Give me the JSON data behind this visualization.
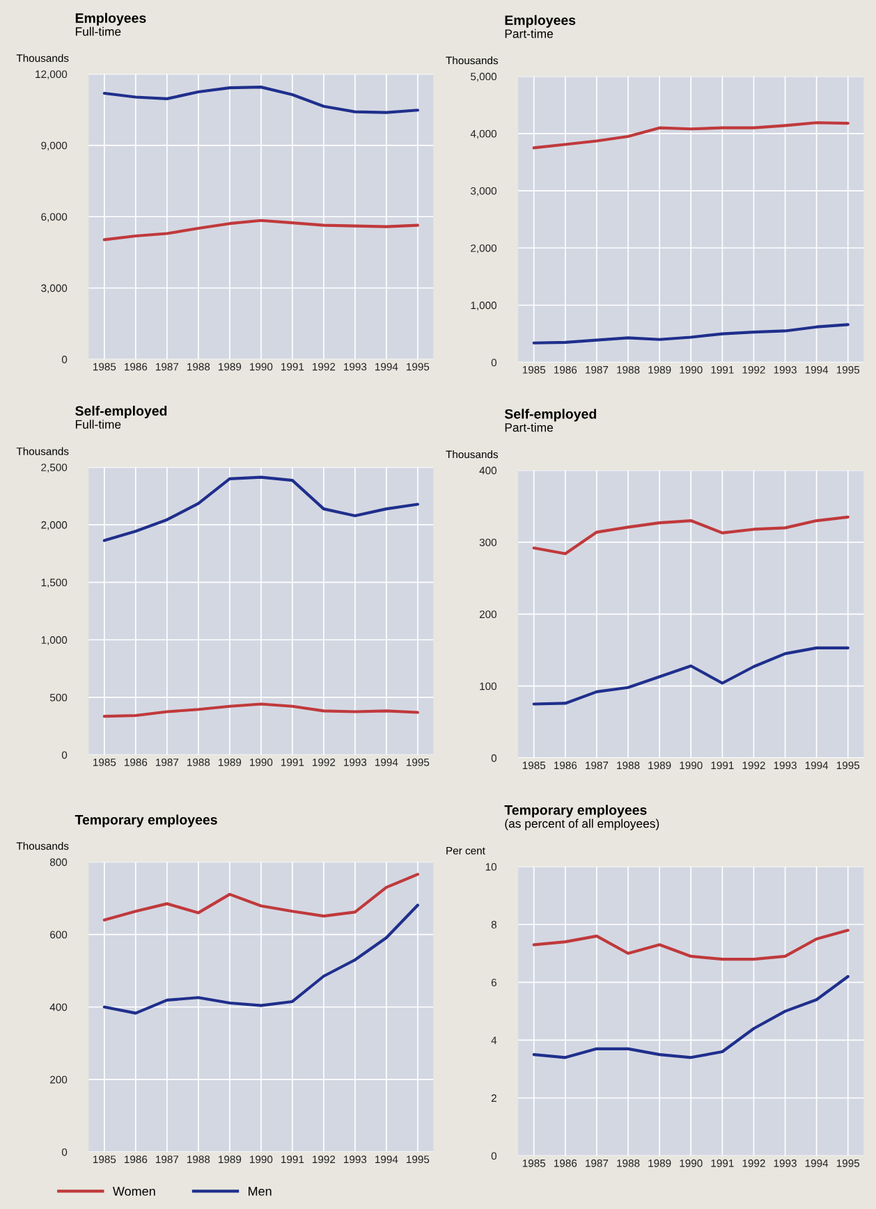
{
  "chart_data": [
    {
      "type": "line",
      "title": "Employees",
      "subtitle": "Full-time",
      "ylabel": "Thousands",
      "categories": [
        "1985",
        "1986",
        "1987",
        "1988",
        "1989",
        "1990",
        "1991",
        "1992",
        "1993",
        "1994",
        "1995"
      ],
      "ylim": [
        0,
        12000
      ],
      "yticks": [
        {
          "value": 0,
          "label": "0"
        },
        {
          "value": 3000,
          "label": "3,000"
        },
        {
          "value": 6000,
          "label": "6,000"
        },
        {
          "value": 9000,
          "label": "9,000"
        },
        {
          "value": 12000,
          "label": "12,000"
        }
      ],
      "grid": true,
      "series": [
        {
          "color": "#c0393b",
          "values": [
            5030,
            5190,
            5290,
            5510,
            5710,
            5840,
            5740,
            5640,
            5610,
            5580,
            5640
          ]
        },
        {
          "color": "#1f2f8c",
          "values": [
            11190,
            11030,
            10960,
            11250,
            11420,
            11450,
            11130,
            10640,
            10410,
            10380,
            10480
          ]
        }
      ]
    },
    {
      "type": "line",
      "title": "Employees",
      "subtitle": "Part-time",
      "ylabel": "Thousands",
      "categories": [
        "1985",
        "1986",
        "1987",
        "1988",
        "1989",
        "1990",
        "1991",
        "1992",
        "1993",
        "1994",
        "1995"
      ],
      "ylim": [
        0,
        5000
      ],
      "yticks": [
        {
          "value": 0,
          "label": "0"
        },
        {
          "value": 1000,
          "label": "1,000"
        },
        {
          "value": 2000,
          "label": "2,000"
        },
        {
          "value": 3000,
          "label": "3,000"
        },
        {
          "value": 4000,
          "label": "4,000"
        },
        {
          "value": 5000,
          "label": "5,000"
        }
      ],
      "grid": true,
      "series": [
        {
          "color": "#c0393b",
          "values": [
            3750,
            3810,
            3870,
            3950,
            4100,
            4080,
            4100,
            4100,
            4140,
            4190,
            4180
          ]
        },
        {
          "color": "#1f2f8c",
          "values": [
            340,
            350,
            390,
            430,
            400,
            440,
            500,
            530,
            550,
            620,
            660
          ]
        }
      ]
    },
    {
      "type": "line",
      "title": "Self-employed",
      "subtitle": "Full-time",
      "ylabel": "Thousands",
      "categories": [
        "1985",
        "1986",
        "1987",
        "1988",
        "1989",
        "1990",
        "1991",
        "1992",
        "1993",
        "1994",
        "1995"
      ],
      "ylim": [
        0,
        2500
      ],
      "yticks": [
        {
          "value": 0,
          "label": "0"
        },
        {
          "value": 500,
          "label": "500"
        },
        {
          "value": 1000,
          "label": "1,000"
        },
        {
          "value": 1500,
          "label": "1,500"
        },
        {
          "value": 2000,
          "label": "2,000"
        },
        {
          "value": 2500,
          "label": "2,500"
        }
      ],
      "grid": true,
      "series": [
        {
          "color": "#c0393b",
          "values": [
            335,
            342,
            375,
            395,
            422,
            442,
            422,
            382,
            375,
            382,
            369
          ]
        },
        {
          "color": "#1f2f8c",
          "values": [
            1863,
            1944,
            2044,
            2185,
            2400,
            2413,
            2386,
            2138,
            2078,
            2138,
            2178
          ]
        }
      ]
    },
    {
      "type": "line",
      "title": "Self-employed",
      "subtitle": "Part-time",
      "ylabel": "Thousands",
      "categories": [
        "1985",
        "1986",
        "1987",
        "1988",
        "1989",
        "1990",
        "1991",
        "1992",
        "1993",
        "1994",
        "1995"
      ],
      "ylim": [
        0,
        400
      ],
      "yticks": [
        0,
        100,
        200,
        300,
        400
      ],
      "grid": true,
      "series": [
        {
          "color": "#c0393b",
          "values": [
            292,
            284,
            314,
            321,
            327,
            330,
            313,
            318,
            320,
            330,
            335
          ]
        },
        {
          "color": "#1f2f8c",
          "values": [
            75,
            76,
            92,
            98,
            113,
            128,
            104,
            127,
            145,
            153,
            153
          ]
        }
      ]
    },
    {
      "type": "line",
      "title": "Temporary employees",
      "ylabel": "Thousands",
      "categories": [
        "1985",
        "1986",
        "1987",
        "1988",
        "1989",
        "1990",
        "1991",
        "1992",
        "1993",
        "1994",
        "1995"
      ],
      "ylim": [
        0,
        800
      ],
      "yticks": [
        0,
        200,
        400,
        600,
        800
      ],
      "grid": true,
      "legend": "bottom",
      "series": [
        {
          "name": "Women",
          "color": "#c0393b",
          "values": [
            640,
            664,
            685,
            660,
            711,
            679,
            664,
            651,
            662,
            730,
            766
          ]
        },
        {
          "name": "Men",
          "color": "#1f2f8c",
          "values": [
            400,
            383,
            419,
            426,
            411,
            404,
            415,
            485,
            530,
            591,
            681
          ]
        }
      ]
    },
    {
      "type": "line",
      "title": "Temporary employees",
      "subtitle": "(as percent of all employees)",
      "ylabel": "Per cent",
      "categories": [
        "1985",
        "1986",
        "1987",
        "1988",
        "1989",
        "1990",
        "1991",
        "1992",
        "1993",
        "1994",
        "1995"
      ],
      "ylim": [
        0,
        10
      ],
      "yticks": [
        0,
        2,
        4,
        6,
        8,
        10
      ],
      "grid": true,
      "series": [
        {
          "color": "#c0393b",
          "values": [
            7.3,
            7.4,
            7.6,
            7.0,
            7.3,
            6.9,
            6.8,
            6.8,
            6.9,
            7.5,
            7.8
          ]
        },
        {
          "color": "#1f2f8c",
          "values": [
            3.5,
            3.4,
            3.7,
            3.7,
            3.5,
            3.4,
            3.6,
            4.4,
            5.0,
            5.4,
            6.2
          ]
        }
      ]
    }
  ]
}
